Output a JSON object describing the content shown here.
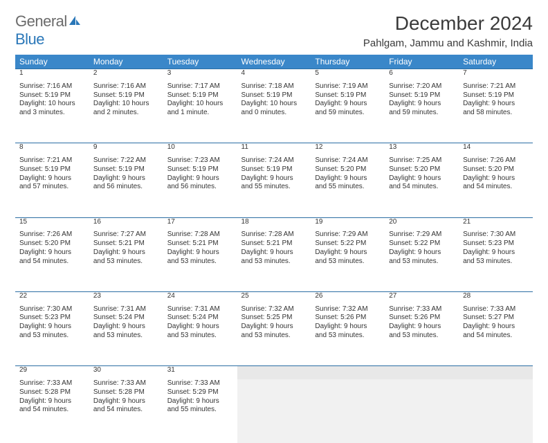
{
  "brand": {
    "general": "General",
    "blue": "Blue"
  },
  "title": "December 2024",
  "location": "Pahlgam, Jammu and Kashmir, India",
  "colors": {
    "header_bg": "#3a87c9",
    "daynum_bg": "#e8e8e8",
    "rule": "#2a6da3",
    "brand_blue": "#2a77b8",
    "brand_gray": "#6b6b6b"
  },
  "weekdays": [
    "Sunday",
    "Monday",
    "Tuesday",
    "Wednesday",
    "Thursday",
    "Friday",
    "Saturday"
  ],
  "weeks": [
    [
      {
        "n": "1",
        "sunrise": "Sunrise: 7:16 AM",
        "sunset": "Sunset: 5:19 PM",
        "dl1": "Daylight: 10 hours",
        "dl2": "and 3 minutes."
      },
      {
        "n": "2",
        "sunrise": "Sunrise: 7:16 AM",
        "sunset": "Sunset: 5:19 PM",
        "dl1": "Daylight: 10 hours",
        "dl2": "and 2 minutes."
      },
      {
        "n": "3",
        "sunrise": "Sunrise: 7:17 AM",
        "sunset": "Sunset: 5:19 PM",
        "dl1": "Daylight: 10 hours",
        "dl2": "and 1 minute."
      },
      {
        "n": "4",
        "sunrise": "Sunrise: 7:18 AM",
        "sunset": "Sunset: 5:19 PM",
        "dl1": "Daylight: 10 hours",
        "dl2": "and 0 minutes."
      },
      {
        "n": "5",
        "sunrise": "Sunrise: 7:19 AM",
        "sunset": "Sunset: 5:19 PM",
        "dl1": "Daylight: 9 hours",
        "dl2": "and 59 minutes."
      },
      {
        "n": "6",
        "sunrise": "Sunrise: 7:20 AM",
        "sunset": "Sunset: 5:19 PM",
        "dl1": "Daylight: 9 hours",
        "dl2": "and 59 minutes."
      },
      {
        "n": "7",
        "sunrise": "Sunrise: 7:21 AM",
        "sunset": "Sunset: 5:19 PM",
        "dl1": "Daylight: 9 hours",
        "dl2": "and 58 minutes."
      }
    ],
    [
      {
        "n": "8",
        "sunrise": "Sunrise: 7:21 AM",
        "sunset": "Sunset: 5:19 PM",
        "dl1": "Daylight: 9 hours",
        "dl2": "and 57 minutes."
      },
      {
        "n": "9",
        "sunrise": "Sunrise: 7:22 AM",
        "sunset": "Sunset: 5:19 PM",
        "dl1": "Daylight: 9 hours",
        "dl2": "and 56 minutes."
      },
      {
        "n": "10",
        "sunrise": "Sunrise: 7:23 AM",
        "sunset": "Sunset: 5:19 PM",
        "dl1": "Daylight: 9 hours",
        "dl2": "and 56 minutes."
      },
      {
        "n": "11",
        "sunrise": "Sunrise: 7:24 AM",
        "sunset": "Sunset: 5:19 PM",
        "dl1": "Daylight: 9 hours",
        "dl2": "and 55 minutes."
      },
      {
        "n": "12",
        "sunrise": "Sunrise: 7:24 AM",
        "sunset": "Sunset: 5:20 PM",
        "dl1": "Daylight: 9 hours",
        "dl2": "and 55 minutes."
      },
      {
        "n": "13",
        "sunrise": "Sunrise: 7:25 AM",
        "sunset": "Sunset: 5:20 PM",
        "dl1": "Daylight: 9 hours",
        "dl2": "and 54 minutes."
      },
      {
        "n": "14",
        "sunrise": "Sunrise: 7:26 AM",
        "sunset": "Sunset: 5:20 PM",
        "dl1": "Daylight: 9 hours",
        "dl2": "and 54 minutes."
      }
    ],
    [
      {
        "n": "15",
        "sunrise": "Sunrise: 7:26 AM",
        "sunset": "Sunset: 5:20 PM",
        "dl1": "Daylight: 9 hours",
        "dl2": "and 54 minutes."
      },
      {
        "n": "16",
        "sunrise": "Sunrise: 7:27 AM",
        "sunset": "Sunset: 5:21 PM",
        "dl1": "Daylight: 9 hours",
        "dl2": "and 53 minutes."
      },
      {
        "n": "17",
        "sunrise": "Sunrise: 7:28 AM",
        "sunset": "Sunset: 5:21 PM",
        "dl1": "Daylight: 9 hours",
        "dl2": "and 53 minutes."
      },
      {
        "n": "18",
        "sunrise": "Sunrise: 7:28 AM",
        "sunset": "Sunset: 5:21 PM",
        "dl1": "Daylight: 9 hours",
        "dl2": "and 53 minutes."
      },
      {
        "n": "19",
        "sunrise": "Sunrise: 7:29 AM",
        "sunset": "Sunset: 5:22 PM",
        "dl1": "Daylight: 9 hours",
        "dl2": "and 53 minutes."
      },
      {
        "n": "20",
        "sunrise": "Sunrise: 7:29 AM",
        "sunset": "Sunset: 5:22 PM",
        "dl1": "Daylight: 9 hours",
        "dl2": "and 53 minutes."
      },
      {
        "n": "21",
        "sunrise": "Sunrise: 7:30 AM",
        "sunset": "Sunset: 5:23 PM",
        "dl1": "Daylight: 9 hours",
        "dl2": "and 53 minutes."
      }
    ],
    [
      {
        "n": "22",
        "sunrise": "Sunrise: 7:30 AM",
        "sunset": "Sunset: 5:23 PM",
        "dl1": "Daylight: 9 hours",
        "dl2": "and 53 minutes."
      },
      {
        "n": "23",
        "sunrise": "Sunrise: 7:31 AM",
        "sunset": "Sunset: 5:24 PM",
        "dl1": "Daylight: 9 hours",
        "dl2": "and 53 minutes."
      },
      {
        "n": "24",
        "sunrise": "Sunrise: 7:31 AM",
        "sunset": "Sunset: 5:24 PM",
        "dl1": "Daylight: 9 hours",
        "dl2": "and 53 minutes."
      },
      {
        "n": "25",
        "sunrise": "Sunrise: 7:32 AM",
        "sunset": "Sunset: 5:25 PM",
        "dl1": "Daylight: 9 hours",
        "dl2": "and 53 minutes."
      },
      {
        "n": "26",
        "sunrise": "Sunrise: 7:32 AM",
        "sunset": "Sunset: 5:26 PM",
        "dl1": "Daylight: 9 hours",
        "dl2": "and 53 minutes."
      },
      {
        "n": "27",
        "sunrise": "Sunrise: 7:33 AM",
        "sunset": "Sunset: 5:26 PM",
        "dl1": "Daylight: 9 hours",
        "dl2": "and 53 minutes."
      },
      {
        "n": "28",
        "sunrise": "Sunrise: 7:33 AM",
        "sunset": "Sunset: 5:27 PM",
        "dl1": "Daylight: 9 hours",
        "dl2": "and 54 minutes."
      }
    ],
    [
      {
        "n": "29",
        "sunrise": "Sunrise: 7:33 AM",
        "sunset": "Sunset: 5:28 PM",
        "dl1": "Daylight: 9 hours",
        "dl2": "and 54 minutes."
      },
      {
        "n": "30",
        "sunrise": "Sunrise: 7:33 AM",
        "sunset": "Sunset: 5:28 PM",
        "dl1": "Daylight: 9 hours",
        "dl2": "and 54 minutes."
      },
      {
        "n": "31",
        "sunrise": "Sunrise: 7:33 AM",
        "sunset": "Sunset: 5:29 PM",
        "dl1": "Daylight: 9 hours",
        "dl2": "and 55 minutes."
      },
      null,
      null,
      null,
      null
    ]
  ]
}
